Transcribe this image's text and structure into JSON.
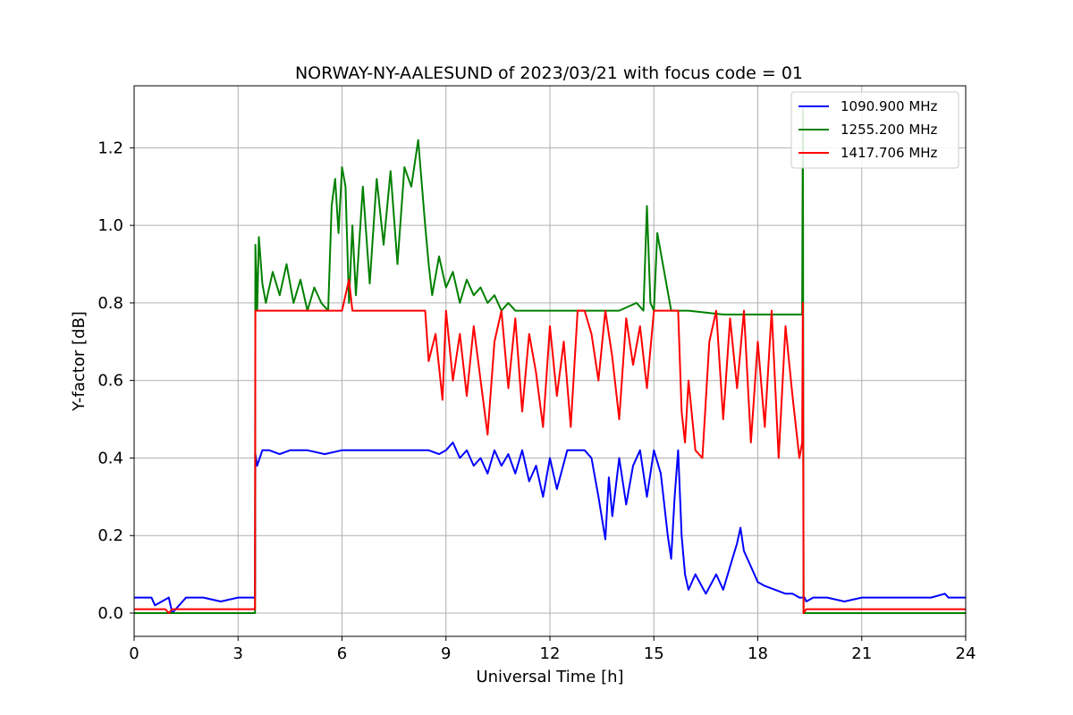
{
  "chart_data": {
    "type": "line",
    "title": "NORWAY-NY-AALESUND of 2023/03/21 with focus code = 01",
    "xlabel": "Universal Time [h]",
    "ylabel": "Y-factor [dB]",
    "xlim": [
      0,
      24
    ],
    "ylim": [
      -0.06,
      1.36
    ],
    "xticks": [
      0,
      3,
      6,
      9,
      12,
      15,
      18,
      21,
      24
    ],
    "xtick_labels": [
      "0",
      "3",
      "6",
      "9",
      "12",
      "15",
      "18",
      "21",
      "24"
    ],
    "yticks": [
      0.0,
      0.2,
      0.4,
      0.6,
      0.8,
      1.0,
      1.2
    ],
    "ytick_labels": [
      "0.0",
      "0.2",
      "0.4",
      "0.6",
      "0.8",
      "1.0",
      "1.2"
    ],
    "grid": true,
    "legend_position": "top-right",
    "series": [
      {
        "name": "1090.900 MHz",
        "color": "#0000ff",
        "x": [
          0,
          0.5,
          0.6,
          1.0,
          1.1,
          1.5,
          2.0,
          2.5,
          3.0,
          3.49,
          3.5,
          3.55,
          3.7,
          3.9,
          4.2,
          4.5,
          5.0,
          5.5,
          6.0,
          6.5,
          7.0,
          7.5,
          8.0,
          8.5,
          8.8,
          9.0,
          9.2,
          9.4,
          9.6,
          9.8,
          10.0,
          10.2,
          10.4,
          10.6,
          10.8,
          11.0,
          11.2,
          11.4,
          11.6,
          11.8,
          12.0,
          12.2,
          12.5,
          12.8,
          13.0,
          13.2,
          13.4,
          13.6,
          13.7,
          13.8,
          14.0,
          14.2,
          14.4,
          14.6,
          14.8,
          15.0,
          15.2,
          15.4,
          15.5,
          15.6,
          15.7,
          15.8,
          15.9,
          16.0,
          16.2,
          16.5,
          16.8,
          17.0,
          17.2,
          17.4,
          17.5,
          17.6,
          17.8,
          18.0,
          18.2,
          18.5,
          18.8,
          19.0,
          19.2,
          19.3,
          19.35,
          19.4,
          19.6,
          20.0,
          20.5,
          21.0,
          21.5,
          22.0,
          22.5,
          23.0,
          23.4,
          23.5,
          24.0
        ],
        "y": [
          0.04,
          0.04,
          0.02,
          0.04,
          0.0,
          0.04,
          0.04,
          0.03,
          0.04,
          0.04,
          0.41,
          0.38,
          0.42,
          0.42,
          0.41,
          0.42,
          0.42,
          0.41,
          0.42,
          0.42,
          0.42,
          0.42,
          0.42,
          0.42,
          0.41,
          0.42,
          0.44,
          0.4,
          0.42,
          0.38,
          0.4,
          0.36,
          0.42,
          0.38,
          0.41,
          0.36,
          0.42,
          0.34,
          0.38,
          0.3,
          0.4,
          0.32,
          0.42,
          0.42,
          0.42,
          0.4,
          0.3,
          0.19,
          0.35,
          0.25,
          0.4,
          0.28,
          0.38,
          0.42,
          0.3,
          0.42,
          0.36,
          0.2,
          0.14,
          0.3,
          0.42,
          0.2,
          0.1,
          0.06,
          0.1,
          0.05,
          0.1,
          0.06,
          0.12,
          0.18,
          0.22,
          0.16,
          0.12,
          0.08,
          0.07,
          0.06,
          0.05,
          0.05,
          0.04,
          0.04,
          0.04,
          0.03,
          0.04,
          0.04,
          0.03,
          0.04,
          0.04,
          0.04,
          0.04,
          0.04,
          0.05,
          0.04,
          0.04
        ]
      },
      {
        "name": "1255.200 MHz",
        "color": "#008000",
        "x": [
          0,
          3.49,
          3.5,
          3.55,
          3.6,
          3.7,
          3.8,
          4.0,
          4.2,
          4.4,
          4.6,
          4.8,
          5.0,
          5.2,
          5.4,
          5.6,
          5.7,
          5.8,
          5.9,
          6.0,
          6.1,
          6.2,
          6.3,
          6.4,
          6.6,
          6.8,
          7.0,
          7.2,
          7.4,
          7.6,
          7.8,
          8.0,
          8.2,
          8.4,
          8.5,
          8.6,
          8.8,
          9.0,
          9.2,
          9.4,
          9.6,
          9.8,
          10.0,
          10.2,
          10.4,
          10.6,
          10.8,
          11.0,
          11.5,
          12.0,
          13.0,
          14.0,
          14.5,
          14.7,
          14.8,
          14.9,
          15.0,
          15.1,
          15.5,
          16.0,
          17.0,
          18.0,
          19.0,
          19.28,
          19.3,
          19.32,
          19.35,
          20.0,
          21.0,
          22.0,
          23.0,
          24.0
        ],
        "y": [
          0.0,
          0.0,
          0.95,
          0.78,
          0.97,
          0.85,
          0.8,
          0.88,
          0.82,
          0.9,
          0.8,
          0.86,
          0.78,
          0.84,
          0.8,
          0.78,
          1.05,
          1.12,
          0.98,
          1.15,
          1.1,
          0.8,
          1.0,
          0.82,
          1.1,
          0.85,
          1.12,
          0.95,
          1.14,
          0.9,
          1.15,
          1.1,
          1.22,
          1.0,
          0.9,
          0.82,
          0.92,
          0.84,
          0.88,
          0.8,
          0.86,
          0.82,
          0.84,
          0.8,
          0.82,
          0.78,
          0.8,
          0.78,
          0.78,
          0.78,
          0.78,
          0.78,
          0.8,
          0.78,
          1.05,
          0.8,
          0.78,
          0.98,
          0.78,
          0.78,
          0.77,
          0.77,
          0.77,
          0.77,
          1.3,
          0.0,
          0.0,
          0.0,
          0.0,
          0.0,
          0.0,
          0.0
        ]
      },
      {
        "name": "1417.706 MHz",
        "color": "#ff0000",
        "x": [
          0,
          0.9,
          1.0,
          1.1,
          1.5,
          2.0,
          3.0,
          3.49,
          3.5,
          4.0,
          5.0,
          6.0,
          6.2,
          6.3,
          7.0,
          8.0,
          8.4,
          8.5,
          8.7,
          8.9,
          9.0,
          9.2,
          9.4,
          9.6,
          9.8,
          10.0,
          10.2,
          10.4,
          10.6,
          10.8,
          11.0,
          11.2,
          11.4,
          11.6,
          11.8,
          12.0,
          12.2,
          12.4,
          12.6,
          12.8,
          13.0,
          13.2,
          13.4,
          13.6,
          13.8,
          14.0,
          14.2,
          14.4,
          14.6,
          14.8,
          15.0,
          15.2,
          15.5,
          15.7,
          15.8,
          15.9,
          16.0,
          16.2,
          16.4,
          16.6,
          16.8,
          17.0,
          17.2,
          17.4,
          17.6,
          17.8,
          18.0,
          18.2,
          18.4,
          18.6,
          18.8,
          19.0,
          19.2,
          19.28,
          19.3,
          19.32,
          19.4,
          19.6,
          20.0,
          21.0,
          22.0,
          23.0,
          24.0
        ],
        "y": [
          0.01,
          0.01,
          0.0,
          0.01,
          0.01,
          0.01,
          0.01,
          0.01,
          0.78,
          0.78,
          0.78,
          0.78,
          0.86,
          0.78,
          0.78,
          0.78,
          0.78,
          0.65,
          0.72,
          0.55,
          0.78,
          0.6,
          0.72,
          0.56,
          0.74,
          0.6,
          0.46,
          0.7,
          0.78,
          0.58,
          0.76,
          0.52,
          0.72,
          0.62,
          0.48,
          0.74,
          0.56,
          0.7,
          0.48,
          0.78,
          0.78,
          0.72,
          0.6,
          0.78,
          0.66,
          0.5,
          0.76,
          0.64,
          0.74,
          0.58,
          0.78,
          0.78,
          0.78,
          0.78,
          0.52,
          0.44,
          0.6,
          0.42,
          0.4,
          0.7,
          0.78,
          0.5,
          0.76,
          0.58,
          0.78,
          0.44,
          0.7,
          0.48,
          0.78,
          0.4,
          0.74,
          0.56,
          0.4,
          0.44,
          0.8,
          0.0,
          0.01,
          0.01,
          0.01,
          0.01,
          0.01,
          0.01,
          0.01
        ]
      }
    ]
  }
}
